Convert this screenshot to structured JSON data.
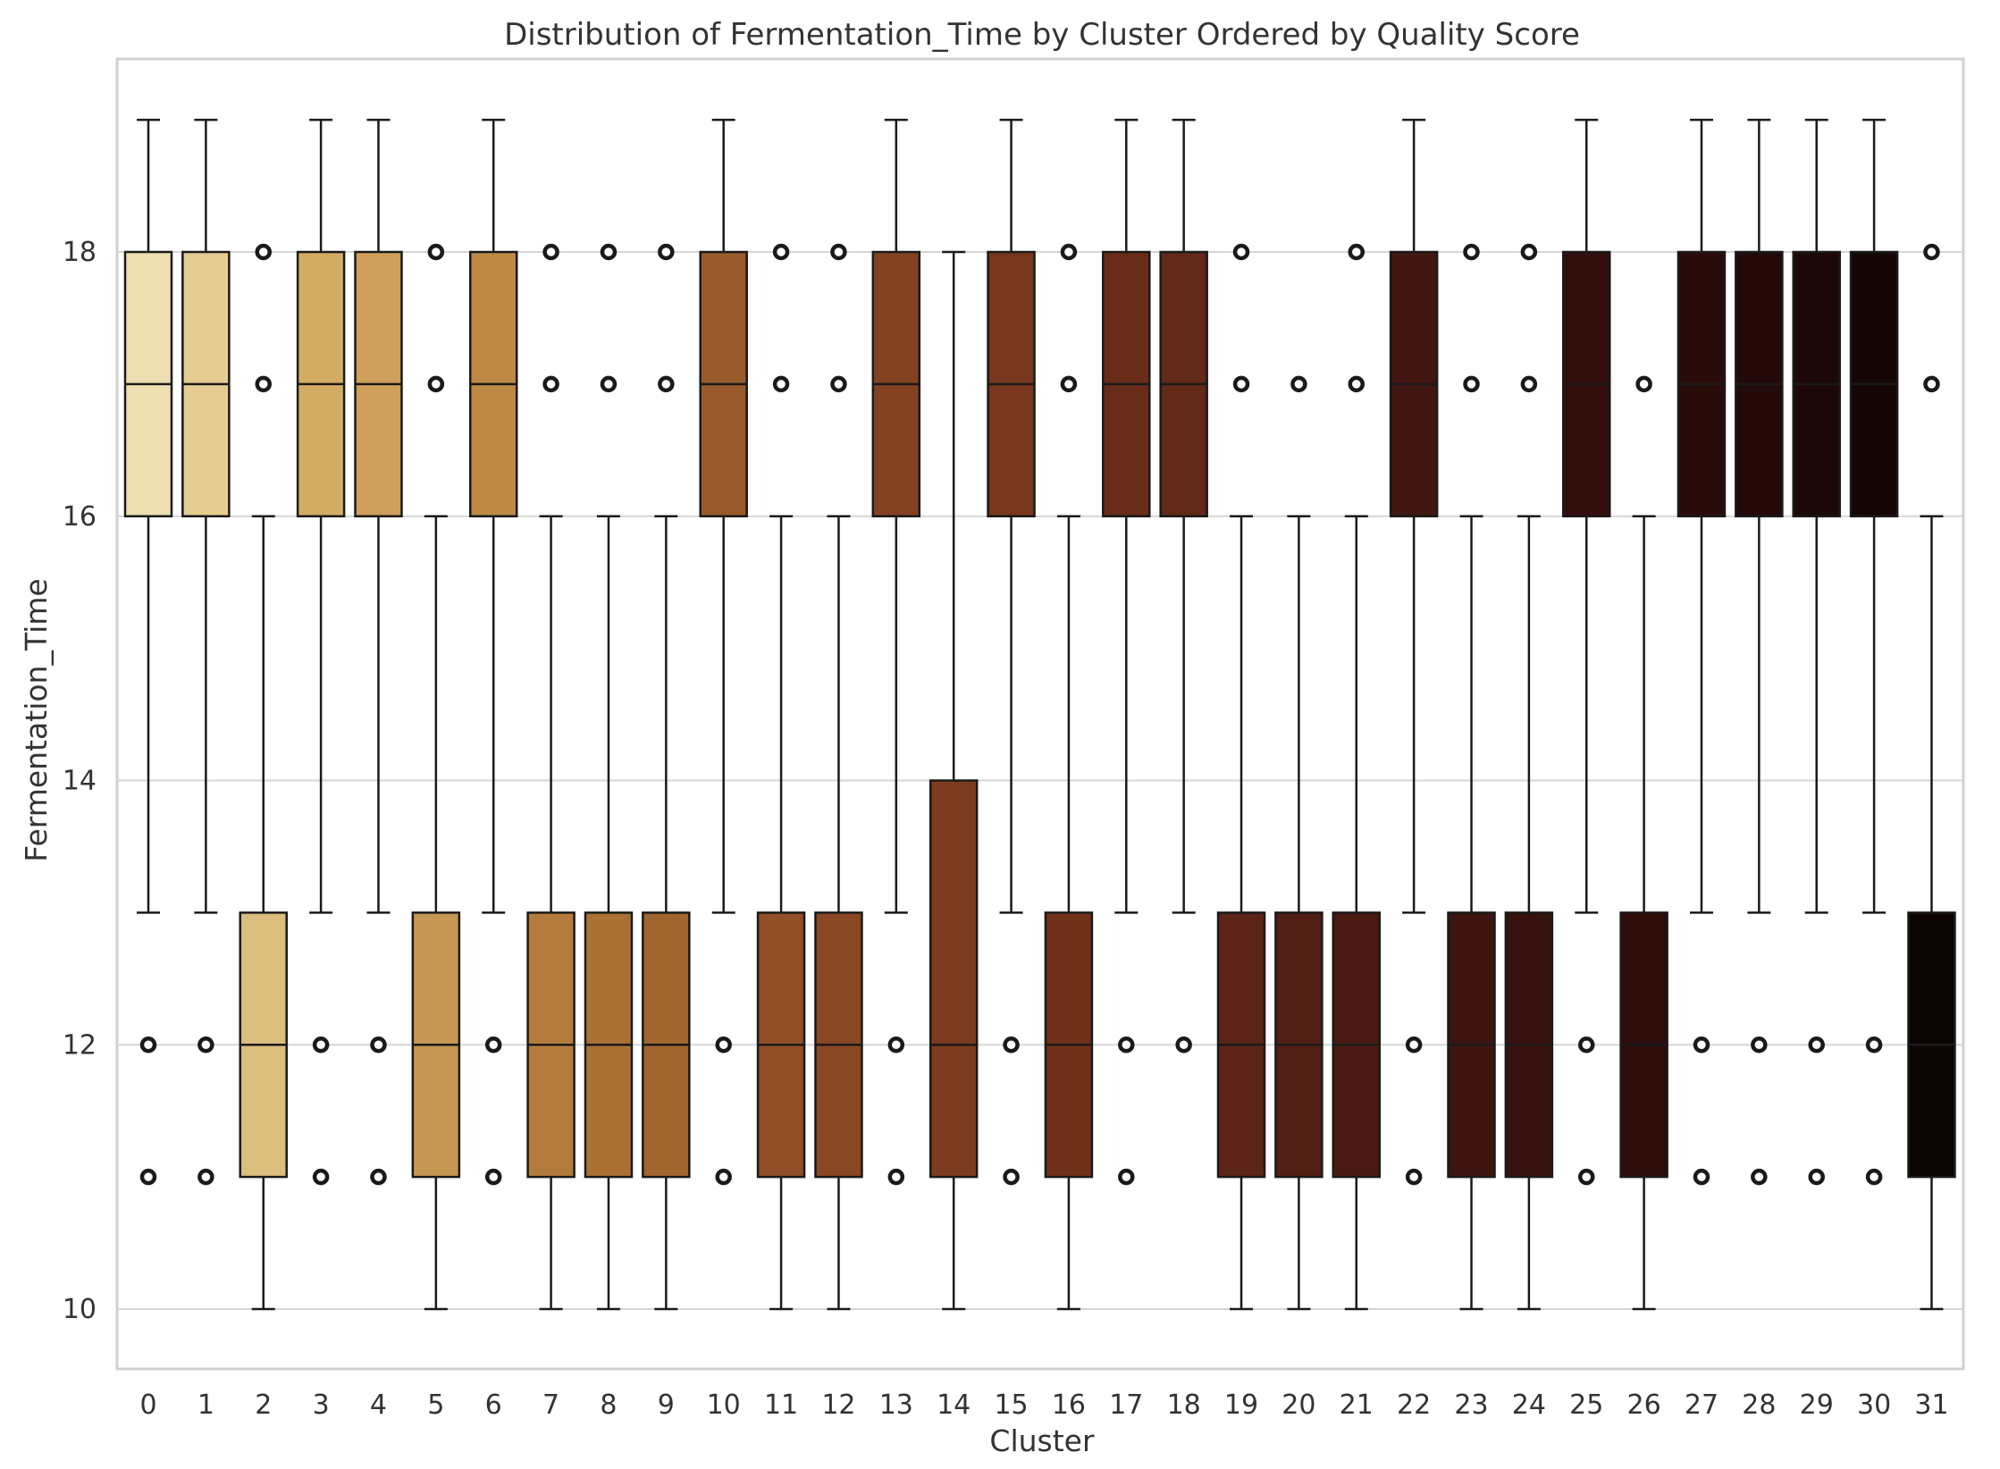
{
  "chart_data": {
    "type": "box",
    "title": "Distribution of Fermentation_Time by Cluster Ordered by Quality Score",
    "xlabel": "Cluster",
    "ylabel": "Fermentation_Time",
    "ylim": [
      9.5,
      19.5
    ],
    "yticks": [
      10,
      12,
      14,
      16,
      18
    ],
    "grid": "horizontal",
    "categories": [
      "0",
      "1",
      "2",
      "3",
      "4",
      "5",
      "6",
      "7",
      "8",
      "9",
      "10",
      "11",
      "12",
      "13",
      "14",
      "15",
      "16",
      "17",
      "18",
      "19",
      "20",
      "21",
      "22",
      "23",
      "24",
      "25",
      "26",
      "27",
      "28",
      "29",
      "30",
      "31"
    ],
    "boxes": [
      {
        "q1": 16,
        "median": 17,
        "q3": 18,
        "whisker_low": 13,
        "whisker_high": 19,
        "outliers": [
          12,
          11
        ],
        "color": "#eddfb2"
      },
      {
        "q1": 16,
        "median": 17,
        "q3": 18,
        "whisker_low": 13,
        "whisker_high": 19,
        "outliers": [
          12,
          11
        ],
        "color": "#e5cc91"
      },
      {
        "q1": 11,
        "median": 12,
        "q3": 13,
        "whisker_low": 10,
        "whisker_high": 16,
        "outliers": [
          18,
          17
        ],
        "color": "#dbbd7d"
      },
      {
        "q1": 16,
        "median": 17,
        "q3": 18,
        "whisker_low": 13,
        "whisker_high": 19,
        "outliers": [
          12,
          11
        ],
        "color": "#d3ac63"
      },
      {
        "q1": 16,
        "median": 17,
        "q3": 18,
        "whisker_low": 13,
        "whisker_high": 19,
        "outliers": [
          12,
          11
        ],
        "color": "#cea05b"
      },
      {
        "q1": 11,
        "median": 12,
        "q3": 13,
        "whisker_low": 10,
        "whisker_high": 16,
        "outliers": [
          18,
          17
        ],
        "color": "#c69752"
      },
      {
        "q1": 16,
        "median": 17,
        "q3": 18,
        "whisker_low": 13,
        "whisker_high": 19,
        "outliers": [
          12,
          11
        ],
        "color": "#bd8944"
      },
      {
        "q1": 11,
        "median": 12,
        "q3": 13,
        "whisker_low": 10,
        "whisker_high": 16,
        "outliers": [
          18,
          17
        ],
        "color": "#b47c3c"
      },
      {
        "q1": 11,
        "median": 12,
        "q3": 13,
        "whisker_low": 10,
        "whisker_high": 16,
        "outliers": [
          18,
          17
        ],
        "color": "#aa7034"
      },
      {
        "q1": 11,
        "median": 12,
        "q3": 13,
        "whisker_low": 10,
        "whisker_high": 16,
        "outliers": [
          18,
          17
        ],
        "color": "#a1652e"
      },
      {
        "q1": 16,
        "median": 17,
        "q3": 18,
        "whisker_low": 13,
        "whisker_high": 19,
        "outliers": [
          12,
          11
        ],
        "color": "#985a2b"
      },
      {
        "q1": 11,
        "median": 12,
        "q3": 13,
        "whisker_low": 10,
        "whisker_high": 16,
        "outliers": [
          18,
          17
        ],
        "color": "#914e27"
      },
      {
        "q1": 11,
        "median": 12,
        "q3": 13,
        "whisker_low": 10,
        "whisker_high": 16,
        "outliers": [
          18,
          17
        ],
        "color": "#8a4724"
      },
      {
        "q1": 16,
        "median": 17,
        "q3": 18,
        "whisker_low": 13,
        "whisker_high": 19,
        "outliers": [
          12,
          11
        ],
        "color": "#824222"
      },
      {
        "q1": 11,
        "median": 12,
        "q3": 14,
        "whisker_low": 10,
        "whisker_high": 18,
        "outliers": [],
        "color": "#7c3b1f"
      },
      {
        "q1": 16,
        "median": 17,
        "q3": 18,
        "whisker_low": 13,
        "whisker_high": 19,
        "outliers": [
          12,
          11
        ],
        "color": "#77361d"
      },
      {
        "q1": 11,
        "median": 12,
        "q3": 13,
        "whisker_low": 10,
        "whisker_high": 16,
        "outliers": [
          18,
          17
        ],
        "color": "#70311b"
      },
      {
        "q1": 16,
        "median": 17,
        "q3": 18,
        "whisker_low": 13,
        "whisker_high": 19,
        "outliers": [
          12,
          11
        ],
        "color": "#692c19"
      },
      {
        "q1": 16,
        "median": 17,
        "q3": 18,
        "whisker_low": 13,
        "whisker_high": 19,
        "outliers": [
          12
        ],
        "color": "#622818"
      },
      {
        "q1": 11,
        "median": 12,
        "q3": 13,
        "whisker_low": 10,
        "whisker_high": 16,
        "outliers": [
          18,
          17
        ],
        "color": "#5b2416"
      },
      {
        "q1": 11,
        "median": 12,
        "q3": 13,
        "whisker_low": 10,
        "whisker_high": 16,
        "outliers": [
          17
        ],
        "color": "#521f14"
      },
      {
        "q1": 11,
        "median": 12,
        "q3": 13,
        "whisker_low": 10,
        "whisker_high": 16,
        "outliers": [
          18,
          17
        ],
        "color": "#4a1a12"
      },
      {
        "q1": 16,
        "median": 17,
        "q3": 18,
        "whisker_low": 13,
        "whisker_high": 19,
        "outliers": [
          12,
          11
        ],
        "color": "#431711"
      },
      {
        "q1": 11,
        "median": 12,
        "q3": 13,
        "whisker_low": 10,
        "whisker_high": 16,
        "outliers": [
          18,
          17
        ],
        "color": "#3d140f"
      },
      {
        "q1": 11,
        "median": 12,
        "q3": 13,
        "whisker_low": 10,
        "whisker_high": 16,
        "outliers": [
          18,
          17
        ],
        "color": "#37110d"
      },
      {
        "q1": 16,
        "median": 17,
        "q3": 18,
        "whisker_low": 13,
        "whisker_high": 19,
        "outliers": [
          12,
          11
        ],
        "color": "#320f0c"
      },
      {
        "q1": 11,
        "median": 12,
        "q3": 13,
        "whisker_low": 10,
        "whisker_high": 16,
        "outliers": [
          17
        ],
        "color": "#2e0d0b"
      },
      {
        "q1": 16,
        "median": 17,
        "q3": 18,
        "whisker_low": 13,
        "whisker_high": 19,
        "outliers": [
          12,
          11
        ],
        "color": "#290c0a"
      },
      {
        "q1": 16,
        "median": 17,
        "q3": 18,
        "whisker_low": 13,
        "whisker_high": 19,
        "outliers": [
          12,
          11
        ],
        "color": "#230a09"
      },
      {
        "q1": 16,
        "median": 17,
        "q3": 18,
        "whisker_low": 13,
        "whisker_high": 19,
        "outliers": [
          12,
          11
        ],
        "color": "#1d0808"
      },
      {
        "q1": 16,
        "median": 17,
        "q3": 18,
        "whisker_low": 13,
        "whisker_high": 19,
        "outliers": [
          12,
          11
        ],
        "color": "#150605"
      },
      {
        "q1": 11,
        "median": 12,
        "q3": 13,
        "whisker_low": 10,
        "whisker_high": 16,
        "outliers": [
          18,
          17
        ],
        "color": "#0c0303"
      }
    ]
  }
}
